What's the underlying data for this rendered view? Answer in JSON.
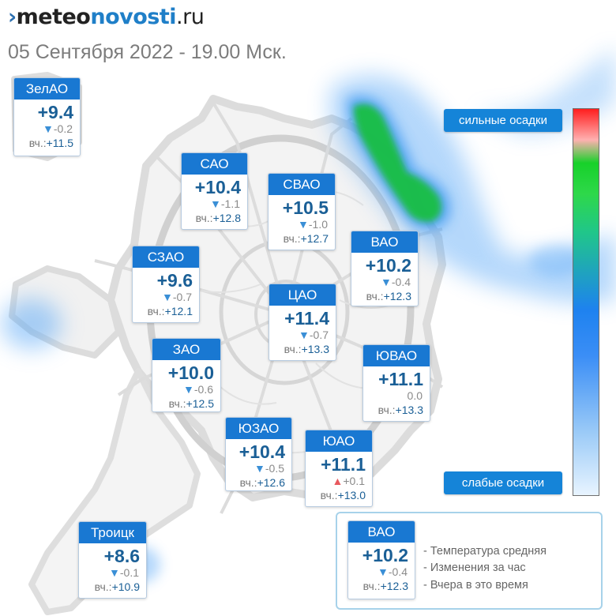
{
  "header": {
    "logo_mark": "›",
    "logo_part1": "meteo",
    "logo_part2": "novosti",
    "logo_part3": ".ru",
    "subtitle": "05 Сентября 2022 - 19.00 Мск."
  },
  "yesterday_label": "вч.:",
  "districts": [
    {
      "id": "zelao",
      "name": "ЗелАО",
      "temp": "+9.4",
      "trend": "down",
      "change": "-0.2",
      "yesterday": "+11.5"
    },
    {
      "id": "sao",
      "name": "САО",
      "temp": "+10.4",
      "trend": "down",
      "change": "-1.1",
      "yesterday": "+12.8"
    },
    {
      "id": "svao",
      "name": "СВАО",
      "temp": "+10.5",
      "trend": "down",
      "change": "-1.0",
      "yesterday": "+12.7"
    },
    {
      "id": "vao",
      "name": "ВАО",
      "temp": "+10.2",
      "trend": "down",
      "change": "-0.4",
      "yesterday": "+12.3"
    },
    {
      "id": "szao",
      "name": "СЗАО",
      "temp": "+9.6",
      "trend": "down",
      "change": "-0.7",
      "yesterday": "+12.1"
    },
    {
      "id": "cao",
      "name": "ЦАО",
      "temp": "+11.4",
      "trend": "down",
      "change": "-0.7",
      "yesterday": "+13.3"
    },
    {
      "id": "zao",
      "name": "ЗАО",
      "temp": "+10.0",
      "trend": "down",
      "change": "-0.6",
      "yesterday": "+12.5"
    },
    {
      "id": "yuvao",
      "name": "ЮВАО",
      "temp": "+11.1",
      "trend": "none",
      "change": "0.0",
      "yesterday": "+13.3"
    },
    {
      "id": "yuzao",
      "name": "ЮЗАО",
      "temp": "+10.4",
      "trend": "down",
      "change": "-0.5",
      "yesterday": "+12.6"
    },
    {
      "id": "yuao",
      "name": "ЮАО",
      "temp": "+11.1",
      "trend": "up",
      "change": "+0.1",
      "yesterday": "+13.0"
    },
    {
      "id": "troitsk",
      "name": "Троицк",
      "temp": "+8.6",
      "trend": "down",
      "change": "-0.1",
      "yesterday": "+10.9"
    }
  ],
  "scale": {
    "high_label": "сильные осадки",
    "low_label": "слабые осадки",
    "colors": [
      "#ff1e1e",
      "#17d12a",
      "#1e82ef",
      "#e8f4ff"
    ]
  },
  "legend": {
    "sample": {
      "name": "ВАО",
      "temp": "+10.2",
      "trend": "down",
      "change": "-0.4",
      "yesterday": "+12.3"
    },
    "line1": "- Температура средняя",
    "line2": "- Изменения за час",
    "line3": "- Вчера в это время"
  },
  "colors": {
    "accent": "#1978d2",
    "temperature": "#1a5f96",
    "arrow_down": "#3a8fd6",
    "arrow_up": "#e8595e"
  }
}
